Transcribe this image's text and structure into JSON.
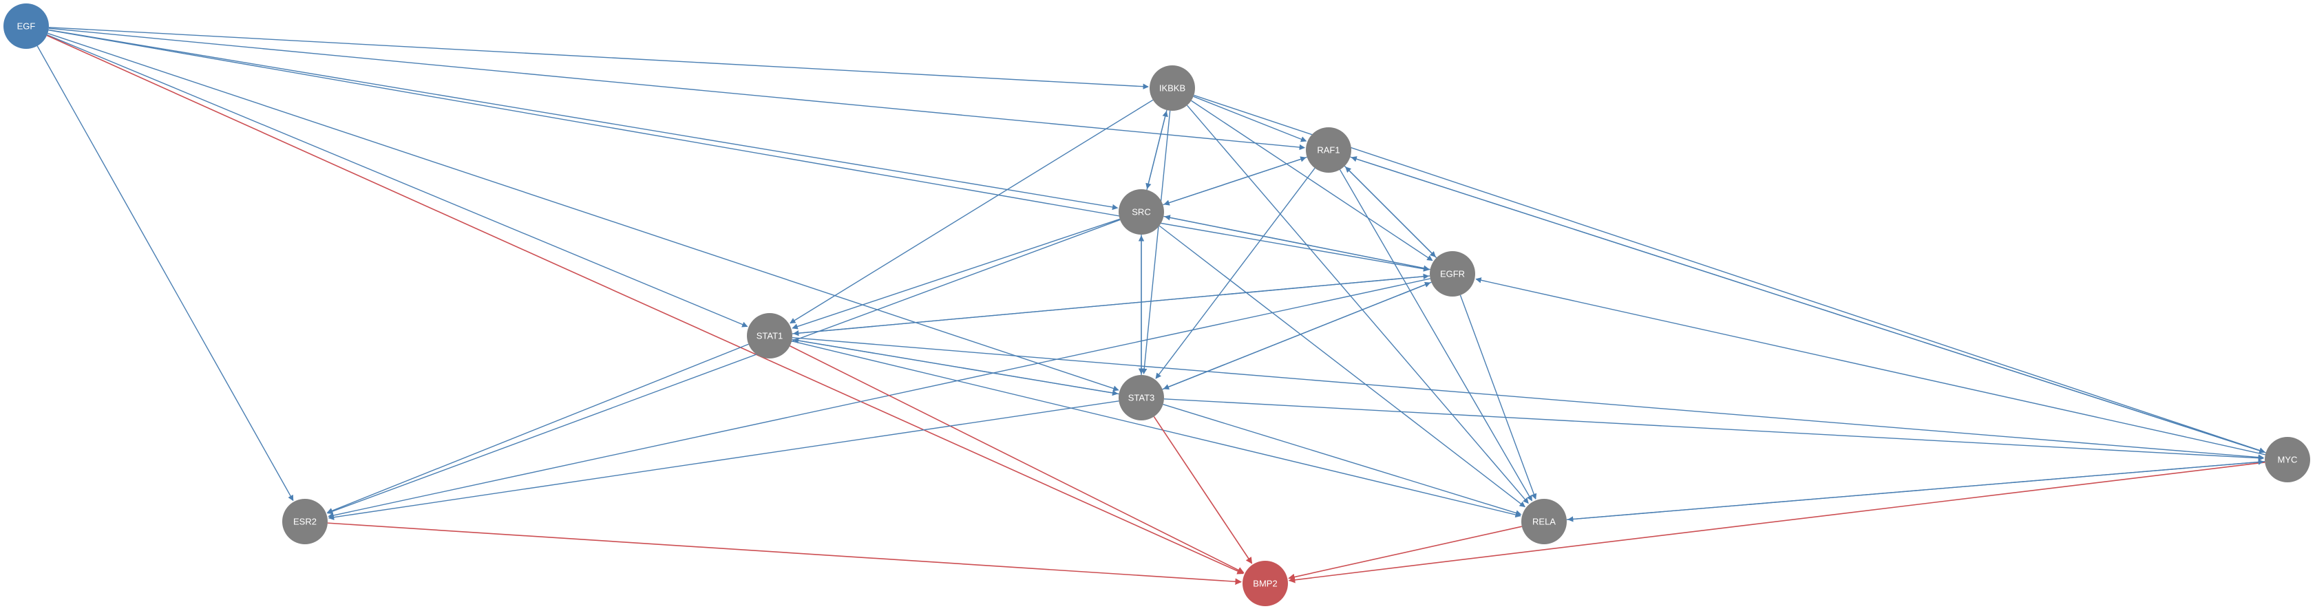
{
  "colors": {
    "node_default": "#808080",
    "node_source": "#4a7fb3",
    "node_target": "#c65557",
    "edge_activation": "#4a7fb3",
    "edge_inhibition": "#cc4e52",
    "background": "#ffffff"
  },
  "nodes": [
    {
      "id": "EGF",
      "label": "EGF",
      "role": "source"
    },
    {
      "id": "IKBKB",
      "label": "IKBKB",
      "role": "default"
    },
    {
      "id": "RAF1",
      "label": "RAF1",
      "role": "default"
    },
    {
      "id": "SRC",
      "label": "SRC",
      "role": "default"
    },
    {
      "id": "EGFR",
      "label": "EGFR",
      "role": "default"
    },
    {
      "id": "STAT1",
      "label": "STAT1",
      "role": "default"
    },
    {
      "id": "STAT3",
      "label": "STAT3",
      "role": "default"
    },
    {
      "id": "MYC",
      "label": "MYC",
      "role": "default"
    },
    {
      "id": "ESR2",
      "label": "ESR2",
      "role": "default"
    },
    {
      "id": "RELA",
      "label": "RELA",
      "role": "default"
    },
    {
      "id": "BMP2",
      "label": "BMP2",
      "role": "target"
    }
  ],
  "edges": [
    {
      "source": "EGF",
      "target": "IKBKB",
      "type": "activation"
    },
    {
      "source": "EGF",
      "target": "RAF1",
      "type": "activation"
    },
    {
      "source": "EGF",
      "target": "SRC",
      "type": "activation"
    },
    {
      "source": "EGF",
      "target": "EGFR",
      "type": "activation"
    },
    {
      "source": "EGF",
      "target": "STAT1",
      "type": "activation"
    },
    {
      "source": "EGF",
      "target": "STAT3",
      "type": "activation"
    },
    {
      "source": "EGF",
      "target": "ESR2",
      "type": "activation"
    },
    {
      "source": "EGF",
      "target": "BMP2",
      "type": "inhibition"
    },
    {
      "source": "IKBKB",
      "target": "RAF1",
      "type": "activation"
    },
    {
      "source": "IKBKB",
      "target": "SRC",
      "type": "activation"
    },
    {
      "source": "IKBKB",
      "target": "EGFR",
      "type": "activation"
    },
    {
      "source": "IKBKB",
      "target": "STAT1",
      "type": "activation"
    },
    {
      "source": "IKBKB",
      "target": "STAT3",
      "type": "activation"
    },
    {
      "source": "IKBKB",
      "target": "RELA",
      "type": "activation"
    },
    {
      "source": "IKBKB",
      "target": "MYC",
      "type": "activation"
    },
    {
      "source": "RAF1",
      "target": "SRC",
      "type": "activation"
    },
    {
      "source": "RAF1",
      "target": "EGFR",
      "type": "activation"
    },
    {
      "source": "RAF1",
      "target": "STAT3",
      "type": "activation"
    },
    {
      "source": "RAF1",
      "target": "RELA",
      "type": "activation"
    },
    {
      "source": "RAF1",
      "target": "MYC",
      "type": "activation"
    },
    {
      "source": "SRC",
      "target": "RAF1",
      "type": "activation"
    },
    {
      "source": "SRC",
      "target": "IKBKB",
      "type": "activation"
    },
    {
      "source": "SRC",
      "target": "EGFR",
      "type": "activation"
    },
    {
      "source": "SRC",
      "target": "STAT1",
      "type": "activation"
    },
    {
      "source": "SRC",
      "target": "STAT3",
      "type": "activation"
    },
    {
      "source": "SRC",
      "target": "ESR2",
      "type": "activation"
    },
    {
      "source": "SRC",
      "target": "RELA",
      "type": "activation"
    },
    {
      "source": "EGFR",
      "target": "SRC",
      "type": "activation"
    },
    {
      "source": "EGFR",
      "target": "RAF1",
      "type": "activation"
    },
    {
      "source": "EGFR",
      "target": "STAT1",
      "type": "activation"
    },
    {
      "source": "EGFR",
      "target": "STAT3",
      "type": "activation"
    },
    {
      "source": "EGFR",
      "target": "ESR2",
      "type": "activation"
    },
    {
      "source": "EGFR",
      "target": "RELA",
      "type": "activation"
    },
    {
      "source": "STAT1",
      "target": "STAT3",
      "type": "activation"
    },
    {
      "source": "STAT1",
      "target": "RELA",
      "type": "activation"
    },
    {
      "source": "STAT1",
      "target": "ESR2",
      "type": "activation"
    },
    {
      "source": "STAT1",
      "target": "MYC",
      "type": "activation"
    },
    {
      "source": "STAT1",
      "target": "EGFR",
      "type": "activation"
    },
    {
      "source": "STAT1",
      "target": "BMP2",
      "type": "inhibition"
    },
    {
      "source": "STAT3",
      "target": "STAT1",
      "type": "activation"
    },
    {
      "source": "STAT3",
      "target": "EGFR",
      "type": "activation"
    },
    {
      "source": "STAT3",
      "target": "RELA",
      "type": "activation"
    },
    {
      "source": "STAT3",
      "target": "ESR2",
      "type": "activation"
    },
    {
      "source": "STAT3",
      "target": "MYC",
      "type": "activation"
    },
    {
      "source": "STAT3",
      "target": "SRC",
      "type": "activation"
    },
    {
      "source": "STAT3",
      "target": "BMP2",
      "type": "inhibition"
    },
    {
      "source": "MYC",
      "target": "EGFR",
      "type": "activation"
    },
    {
      "source": "MYC",
      "target": "RAF1",
      "type": "activation"
    },
    {
      "source": "MYC",
      "target": "RELA",
      "type": "activation"
    },
    {
      "source": "MYC",
      "target": "BMP2",
      "type": "inhibition"
    },
    {
      "source": "ESR2",
      "target": "BMP2",
      "type": "inhibition"
    },
    {
      "source": "RELA",
      "target": "BMP2",
      "type": "inhibition"
    },
    {
      "source": "RELA",
      "target": "MYC",
      "type": "activation"
    }
  ]
}
